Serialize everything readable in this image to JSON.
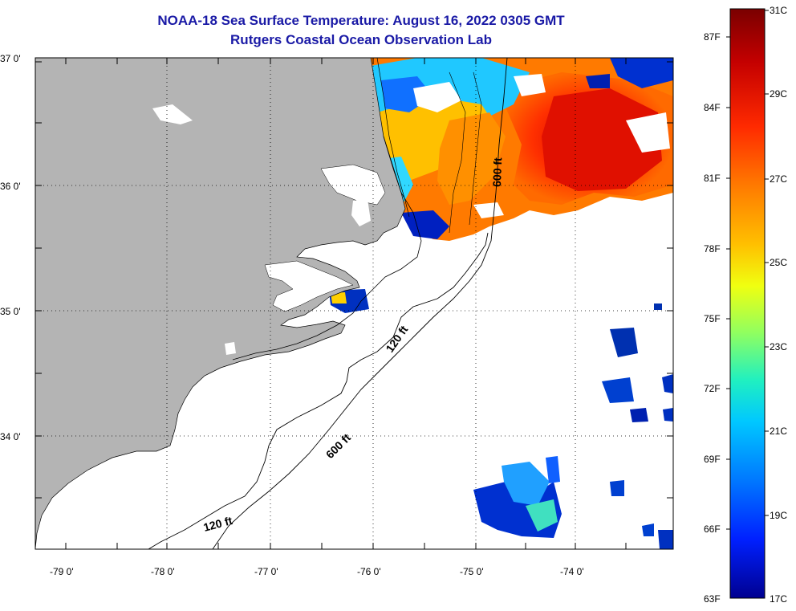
{
  "header": {
    "title_line1": "NOAA-18 Sea Surface Temperature:  August 16, 2022 0305 GMT",
    "title_line2": "Rutgers Coastal Ocean Observation Lab"
  },
  "axes": {
    "lat_labels": [
      "37 0'",
      "36 0'",
      "35 0'",
      "34 0'"
    ],
    "lon_labels": [
      "-79 0'",
      "-78 0'",
      "-77 0'",
      "-76 0'",
      "-75 0'",
      "-74 0'"
    ]
  },
  "contours": {
    "labels": [
      "600 ft",
      "120 ft",
      "600 ft",
      "120 ft"
    ]
  },
  "colorbar": {
    "f_labels": [
      "87F",
      "84F",
      "81F",
      "78F",
      "75F",
      "72F",
      "69F",
      "66F",
      "63F"
    ],
    "c_labels": [
      "31C",
      "29C",
      "27C",
      "25C",
      "23C",
      "21C",
      "19C",
      "17C"
    ],
    "stops": [
      "#7a0000",
      "#c40000",
      "#ff2a00",
      "#ff7a00",
      "#ffc000",
      "#f0ff10",
      "#90ff60",
      "#20f0c0",
      "#00c8ff",
      "#0078ff",
      "#0020ff",
      "#000090"
    ]
  },
  "colors": {
    "land": "#b4b4b4",
    "ocean": "#ffffff",
    "title": "#1a1aa6"
  }
}
